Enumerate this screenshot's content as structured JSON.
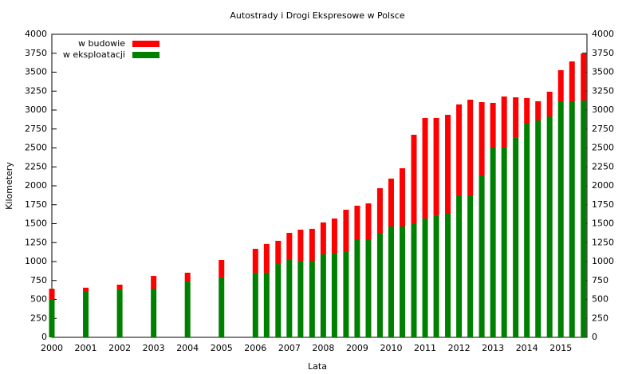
{
  "chart_data": {
    "type": "stacked-bar",
    "title": "Autostrady i Drogi Ekspresowe w Polsce",
    "x_label": "Lata",
    "y_label": "Kilometery",
    "x": [
      2000,
      2001,
      2002,
      2003,
      2004,
      2005,
      2006,
      2006.33,
      2006.67,
      2007,
      2007.33,
      2007.67,
      2008,
      2008.33,
      2008.67,
      2009,
      2009.33,
      2009.67,
      2010,
      2010.33,
      2010.67,
      2011,
      2011.33,
      2011.67,
      2012,
      2012.33,
      2012.67,
      2013,
      2013.33,
      2013.67,
      2014,
      2014.33,
      2014.67,
      2015,
      2015.33,
      2015.67
    ],
    "series": [
      {
        "name": "w budowie",
        "color": "#ff0000",
        "values": [
          137,
          55,
          63,
          168,
          116,
          231,
          315,
          380,
          306,
          358,
          411,
          422,
          421,
          463,
          558,
          453,
          484,
          589,
          632,
          769,
          1169,
          1327,
          1285,
          1295,
          1200,
          1263,
          968,
          590,
          674,
          536,
          337,
          253,
          326,
          410,
          526,
          621
        ]
      },
      {
        "name": "w eksploatacji",
        "color": "#008000",
        "values": [
          505,
          600,
          632,
          642,
          737,
          790,
          853,
          853,
          968,
          1021,
          1010,
          1010,
          1095,
          1105,
          1126,
          1284,
          1284,
          1379,
          1463,
          1463,
          1505,
          1568,
          1610,
          1642,
          1874,
          1874,
          2137,
          2505,
          2505,
          2632,
          2821,
          2863,
          2916,
          3116,
          3116,
          3126
        ]
      }
    ],
    "xlim": [
      2000,
      2015.77
    ],
    "xticks": [
      2000,
      2001,
      2002,
      2003,
      2004,
      2005,
      2006,
      2007,
      2008,
      2009,
      2010,
      2011,
      2012,
      2013,
      2014,
      2015
    ],
    "ylim": [
      0,
      4000
    ],
    "yticks": [
      0,
      250,
      500,
      750,
      1000,
      1250,
      1500,
      1750,
      2000,
      2250,
      2500,
      2750,
      3000,
      3250,
      3500,
      3750,
      4000
    ],
    "y2lim": [
      0,
      4000
    ],
    "y2ticks": [
      0,
      250,
      500,
      750,
      1000,
      1250,
      1500,
      1750,
      2000,
      2250,
      2500,
      2750,
      3000,
      3250,
      3500,
      3750,
      4000
    ],
    "legend": "top-left",
    "grid": false
  }
}
